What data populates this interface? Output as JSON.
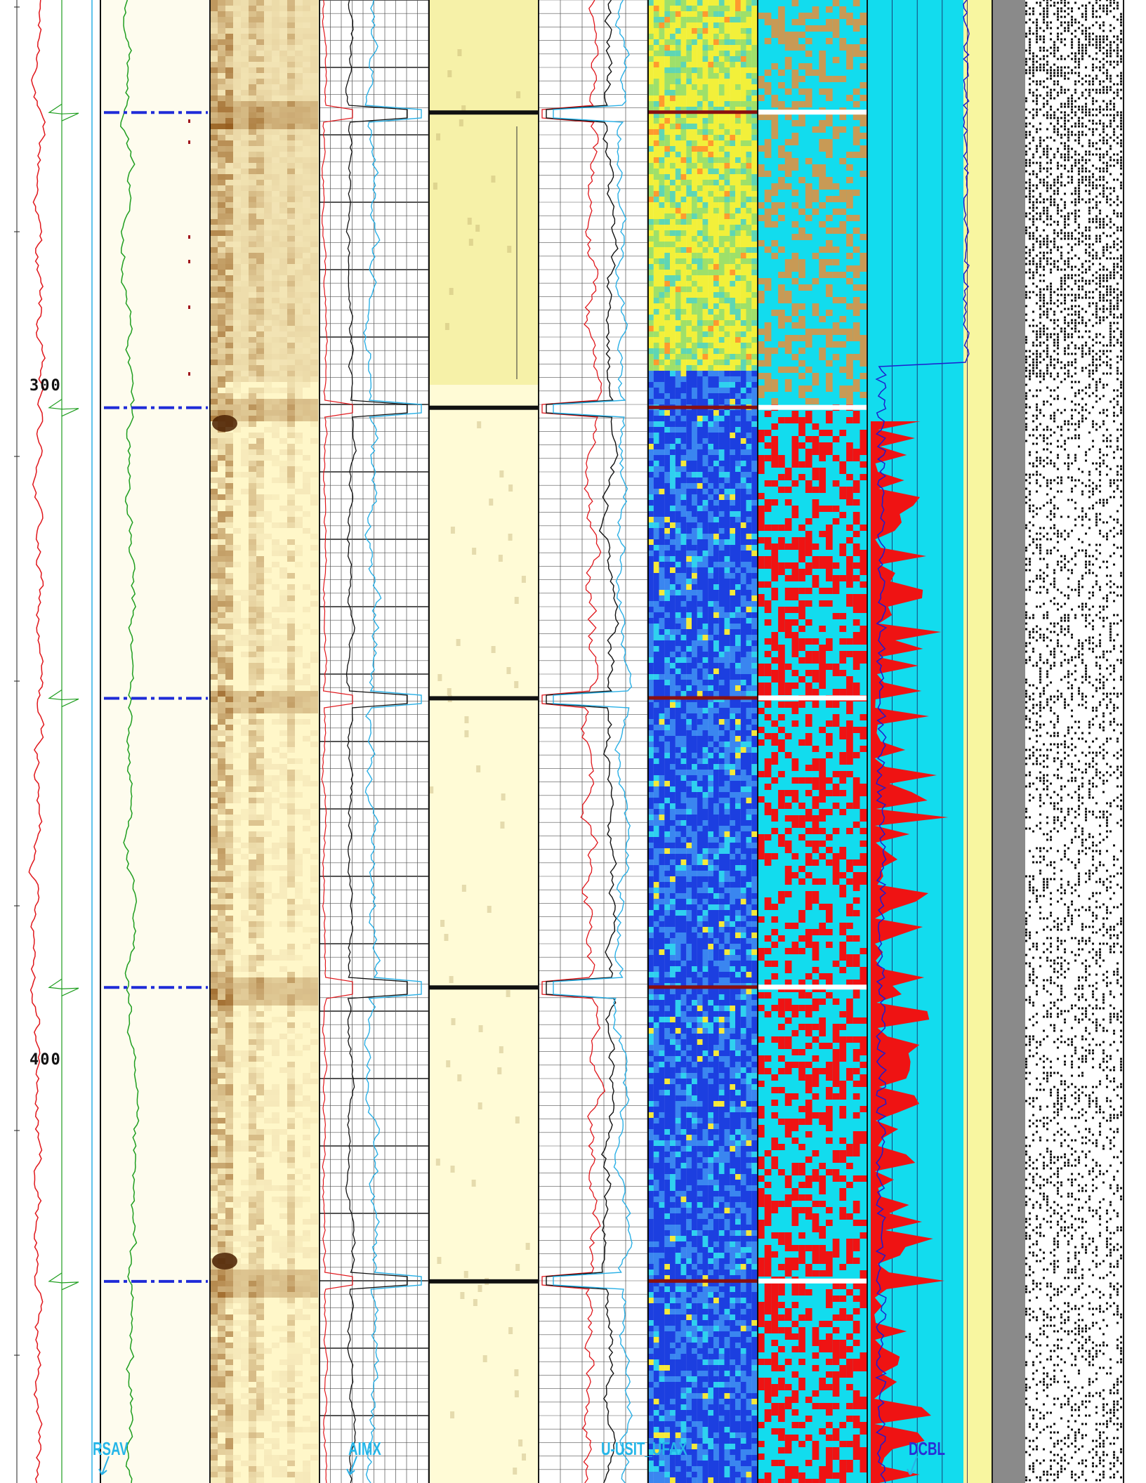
{
  "depth_labels": [
    {
      "text": "300",
      "depth": 300
    },
    {
      "text": "400",
      "depth": 400
    }
  ],
  "curve_labels": [
    {
      "key": "rsav",
      "text": "RSAV"
    },
    {
      "key": "aimx",
      "text": "AIMX"
    },
    {
      "key": "uusit",
      "text": "U-USIT_UFAX"
    },
    {
      "key": "dcbl",
      "text": "DCBL"
    }
  ],
  "collar_depths": [
    259.5,
    303.3,
    346.4,
    389.3,
    432.9
  ],
  "colors": {
    "track_bg": "#fefcee",
    "red_curve": "#e0161b",
    "green_curve": "#1f9e1f",
    "cyan_curve": "#2ab0e6",
    "black_curve": "#111111",
    "navy_curve": "#1d1dcf",
    "collar_blue": "#1f2bd8",
    "amplitude_light": "#fff7c9",
    "amplitude_dark": "#8a4a08",
    "impedance_low": "#1c3fe0",
    "impedance_mid": "#2fd1ef",
    "impedance_high": "#f2f03a",
    "cement_cyan": "#12dcee",
    "cement_red": "#ef1313",
    "cement_tan": "#c89a55",
    "waveform_grey": "#8a8a8a"
  }
}
